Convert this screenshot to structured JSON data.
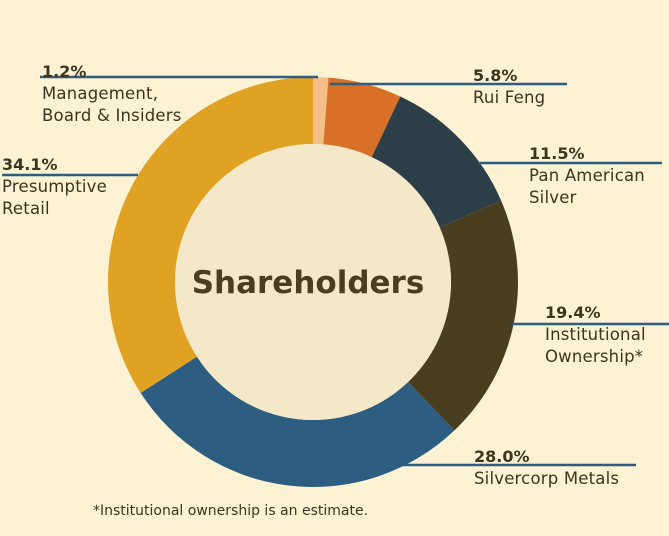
{
  "chart_data": {
    "type": "pie",
    "title": "Shareholders",
    "slices": [
      {
        "label": "Management,\nBoard & Insiders",
        "pct_label": "1.2%",
        "value": 1.2,
        "color": "#f4c08a"
      },
      {
        "label": "Rui Feng",
        "pct_label": "5.8%",
        "value": 5.8,
        "color": "#d87127"
      },
      {
        "label": "Pan American\nSilver",
        "pct_label": "11.5%",
        "value": 11.5,
        "color": "#2c3e47"
      },
      {
        "label": "Institutional\nOwnership*",
        "pct_label": "19.4%",
        "value": 19.4,
        "color": "#4a3e20"
      },
      {
        "label": "Silvercorp Metals",
        "pct_label": "28.0%",
        "value": 28.0,
        "color": "#2d5d80"
      },
      {
        "label": "Presumptive\nRetail",
        "pct_label": "34.1%",
        "value": 34.1,
        "color": "#e0a222"
      }
    ],
    "center_color": "#f4e8c8",
    "leader_color": "#2d5d80"
  },
  "footnote": "*Institutional ownership is an estimate."
}
